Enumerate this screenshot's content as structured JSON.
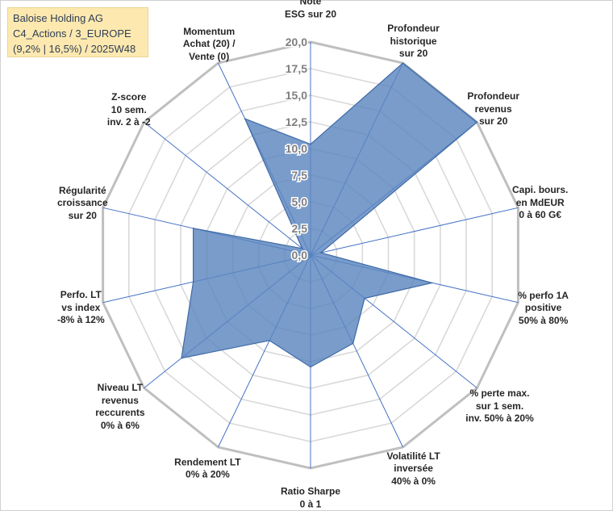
{
  "title_box": {
    "line1": "Baloise Holding AG",
    "line2": "C4_Actions / 3_EUROPE",
    "line3": "(9,2% | 16,5%) / 2025W48"
  },
  "colors": {
    "fill": "#5b86c0",
    "stroke": "#3e6aa6",
    "grid": "#d9d9d9",
    "outer_ring": "#bfbfbf",
    "spoke": "#4472c4",
    "title_bg": "#fde9b0"
  },
  "chart_data": {
    "type": "radar",
    "title": "Baloise Holding AG",
    "rmin": 0,
    "rmax": 20,
    "ticks": [
      "0,0",
      "2,5",
      "5,0",
      "7,5",
      "10,0",
      "12,5",
      "15,0",
      "17,5",
      "20,0"
    ],
    "tick_values": [
      0,
      2.5,
      5,
      7.5,
      10,
      12.5,
      15,
      17.5,
      20
    ],
    "axes": [
      {
        "lines": [
          "Note",
          "ESG sur 20"
        ],
        "value": 10.4
      },
      {
        "lines": [
          "Profondeur",
          "historique",
          "sur 20"
        ],
        "value": 20.0
      },
      {
        "lines": [
          "Profondeur",
          "revenus",
          "sur 20"
        ],
        "value": 20.0
      },
      {
        "lines": [
          "Capi. bours.",
          "en MdEUR",
          "0 à 60 G€"
        ],
        "value": 1.0
      },
      {
        "lines": [
          "% perfo 1A",
          "positive",
          "50% à 80%"
        ],
        "value": 11.7
      },
      {
        "lines": [
          "% perte max.",
          "sur 1 sem.",
          "inv. 50% à 20%"
        ],
        "value": 6.5
      },
      {
        "lines": [
          "Volatilité LT",
          "inversée",
          "40% à 0%"
        ],
        "value": 9.2
      },
      {
        "lines": [
          "Ratio Sharpe",
          "0 à 1"
        ],
        "value": 10.5
      },
      {
        "lines": [
          "Rendement LT",
          "0% à 20%"
        ],
        "value": 8.9
      },
      {
        "lines": [
          "Niveau LT",
          "revenus",
          "reccurents",
          "0% à 6%"
        ],
        "value": 15.5
      },
      {
        "lines": [
          "Perfo. LT",
          "vs index",
          "-8% à 12%"
        ],
        "value": 11.3
      },
      {
        "lines": [
          "Régularité",
          "croissance",
          "sur 20"
        ],
        "value": 11.3
      },
      {
        "lines": [
          "Z-score",
          "10 sem.",
          "inv. 2 à -2"
        ],
        "value": 1.0
      },
      {
        "lines": [
          "Momentum",
          "Achat (20) /",
          "Vente (0)"
        ],
        "value": 14.2
      }
    ]
  }
}
